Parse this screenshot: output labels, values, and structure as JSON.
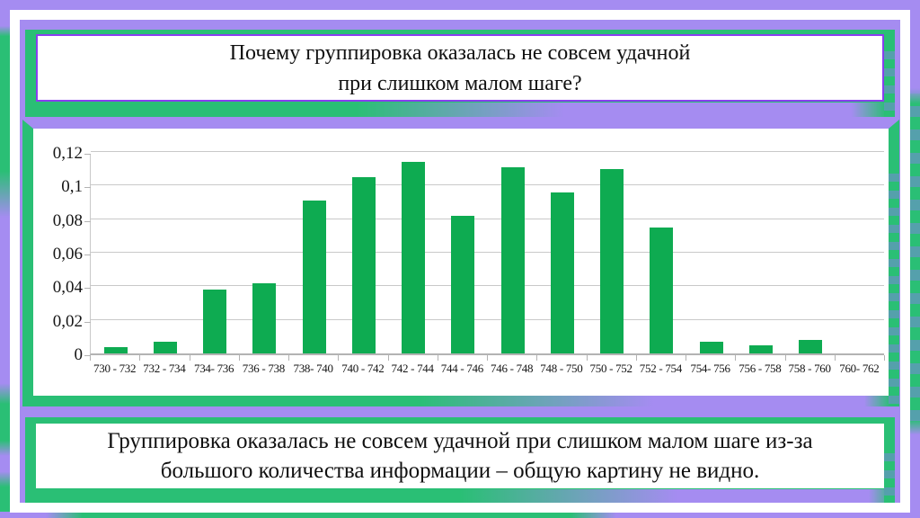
{
  "slide": {
    "title": {
      "lines": [
        "Почему группировка оказалась не совсем удачной",
        "при слишком малом шаге?"
      ]
    },
    "conclusion": {
      "lines": [
        "Группировка оказалась не совсем удачной при слишком малом шаге из-за",
        "большого количества информации – общую картину не видно."
      ]
    }
  },
  "colors": {
    "purple": "#a58cf1",
    "frame_green": "#2abf75",
    "bar_green": "#0eab51",
    "stripe_teal": "#55a0ac",
    "gridline": "#c9c9c9",
    "box_border": "#8a3ef0",
    "frame_white": "#ffffff",
    "text": "#101010"
  },
  "chart_data": {
    "type": "bar",
    "title": "",
    "xlabel": "",
    "ylabel": "",
    "categories": [
      "730 - 732",
      "732 - 734",
      "734- 736",
      "736 - 738",
      "738- 740",
      "740 - 742",
      "742 - 744",
      "744 - 746",
      "746 - 748",
      "748 - 750",
      "750 - 752",
      "752 - 754",
      "754- 756",
      "756 - 758",
      "758 - 760",
      "760- 762"
    ],
    "values": [
      0.004,
      0.007,
      0.038,
      0.042,
      0.091,
      0.105,
      0.114,
      0.082,
      0.111,
      0.096,
      0.11,
      0.075,
      0.007,
      0.005,
      0.008,
      0
    ],
    "y_ticks": [
      {
        "label": "0",
        "value": 0
      },
      {
        "label": "0,02",
        "value": 0.02
      },
      {
        "label": "0,04",
        "value": 0.04
      },
      {
        "label": "0,06",
        "value": 0.06
      },
      {
        "label": "0,08",
        "value": 0.08
      },
      {
        "label": "0,1",
        "value": 0.1
      },
      {
        "label": "0,12",
        "value": 0.12
      }
    ],
    "ylim": [
      0,
      0.12
    ],
    "grid": true,
    "legend": false,
    "bar_color": "#0eab51"
  }
}
